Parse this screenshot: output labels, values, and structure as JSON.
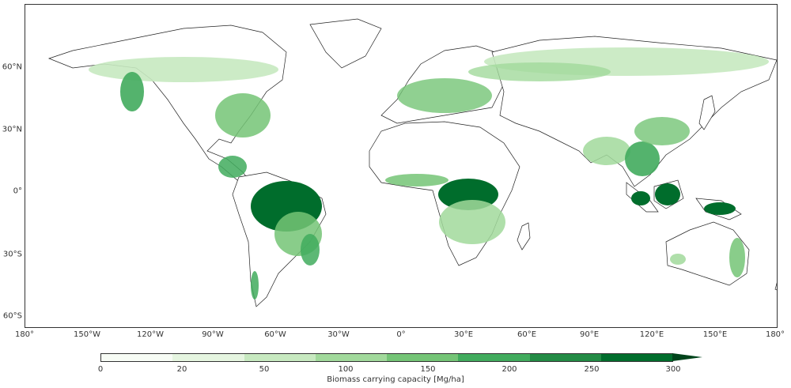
{
  "map": {
    "longitude_labels": [
      "180°",
      "150°W",
      "120°W",
      "90°W",
      "60°W",
      "30°W",
      "0°",
      "30°E",
      "60°E",
      "90°E",
      "120°E",
      "150°E",
      "180°"
    ],
    "latitude_labels": [
      "60°N",
      "30°N",
      "0°",
      "30°S",
      "60°S"
    ]
  },
  "legend": {
    "title": "Biomass carrying capacity [Mg/ha]",
    "tick_labels": [
      "0",
      "20",
      "50",
      "100",
      "150",
      "200",
      "250",
      "300"
    ],
    "colors": [
      "#f7fcf5",
      "#e5f5e0",
      "#c7e9c0",
      "#a1d99b",
      "#74c476",
      "#41ab5d",
      "#238b45",
      "#006d2c"
    ],
    "overflow_color": "#00441b",
    "extend": "max"
  }
}
